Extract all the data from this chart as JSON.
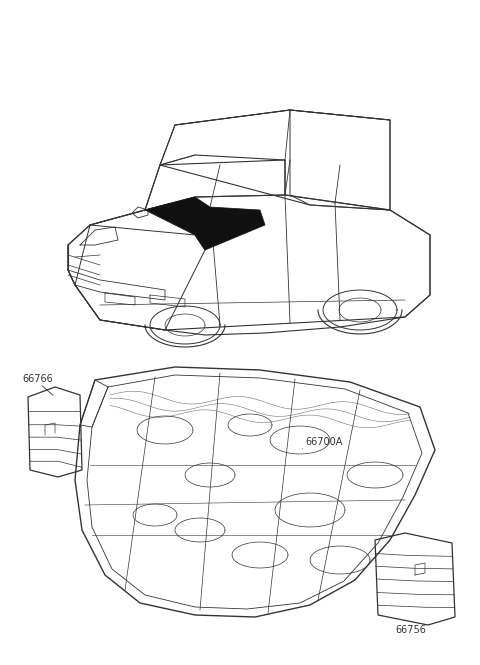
{
  "background_color": "#ffffff",
  "fig_width": 4.8,
  "fig_height": 6.65,
  "dpi": 100,
  "label_66766": "66766",
  "label_66700A": "66700A",
  "label_66756": "66756",
  "label_color": "#333333",
  "line_color": "#333333",
  "fill_black": "#111111",
  "label_fontsize": 7.0
}
